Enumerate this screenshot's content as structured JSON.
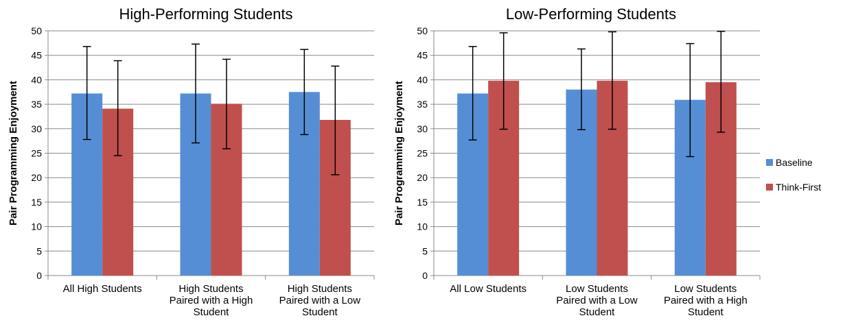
{
  "chart_data": [
    {
      "type": "bar",
      "title": "High-Performing Students",
      "ylabel": "Pair Programming Enjoyment",
      "xlabel": "",
      "ylim": [
        0,
        50
      ],
      "yticks": [
        0,
        5,
        10,
        15,
        20,
        25,
        30,
        35,
        40,
        45,
        50
      ],
      "grid": true,
      "categories": [
        [
          "All High Students"
        ],
        [
          "High Students",
          "Paired with a High",
          "Student"
        ],
        [
          "High Students",
          "Paired with a Low",
          "Student"
        ]
      ],
      "series": [
        {
          "name": "Baseline",
          "color": "#558ed5",
          "values": [
            37.2,
            37.2,
            37.5
          ],
          "error_low": [
            27.8,
            27.1,
            28.8
          ],
          "error_high": [
            46.8,
            47.3,
            46.2
          ]
        },
        {
          "name": "Think-First",
          "color": "#c0504d",
          "values": [
            34.1,
            35.1,
            31.8
          ],
          "error_low": [
            24.5,
            25.9,
            20.6
          ],
          "error_high": [
            43.9,
            44.2,
            42.8
          ]
        }
      ]
    },
    {
      "type": "bar",
      "title": "Low-Performing Students",
      "ylabel": "Pair Programming Enjoyment",
      "xlabel": "",
      "ylim": [
        0,
        50
      ],
      "yticks": [
        0,
        5,
        10,
        15,
        20,
        25,
        30,
        35,
        40,
        45,
        50
      ],
      "grid": true,
      "categories": [
        [
          "All Low Students"
        ],
        [
          "Low Students",
          "Paired with a Low",
          "Student"
        ],
        [
          "Low Students",
          "Paired with a High",
          "Student"
        ]
      ],
      "series": [
        {
          "name": "Baseline",
          "color": "#558ed5",
          "values": [
            37.2,
            38.0,
            35.9
          ],
          "error_low": [
            27.7,
            29.8,
            24.3
          ],
          "error_high": [
            46.8,
            46.3,
            47.4
          ]
        },
        {
          "name": "Think-First",
          "color": "#c0504d",
          "values": [
            39.8,
            39.8,
            39.5
          ],
          "error_low": [
            29.9,
            29.9,
            29.3
          ],
          "error_high": [
            49.6,
            49.8,
            49.9
          ]
        }
      ]
    }
  ],
  "legend": {
    "placement": "right",
    "items": [
      {
        "label": "Baseline",
        "color": "#558ed5"
      },
      {
        "label": "Think-First",
        "color": "#c0504d"
      }
    ]
  }
}
